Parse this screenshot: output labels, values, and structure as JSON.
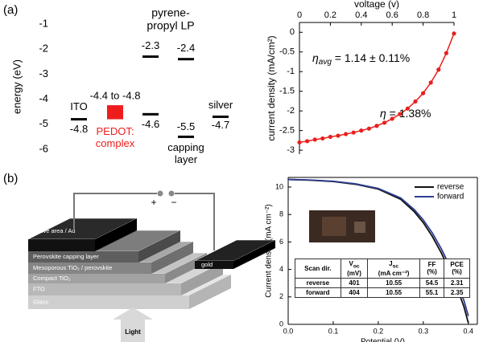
{
  "panel_labels": [
    "(a)",
    "(b)"
  ],
  "chart_data": [
    {
      "type": "energy_levels",
      "ylabel": "energy (eV)",
      "ylim": [
        -6,
        -1
      ],
      "yticks": [
        -1,
        -2,
        -3,
        -4,
        -5,
        -6
      ],
      "annotation_lines": [
        "pyrene-",
        "propyl LP"
      ],
      "levels": [
        {
          "name_lines": [
            "ITO"
          ],
          "values": [
            -4.8
          ]
        },
        {
          "name_lines": [
            "PEDOT:",
            "complex"
          ],
          "values": [
            -4.4,
            -4.8
          ],
          "label": "-4.4 to -4.8",
          "color": "#ee1c1c",
          "range": true
        },
        {
          "values": [
            -2.3,
            -4.6
          ]
        },
        {
          "name_lines": [
            "capping",
            "layer"
          ],
          "values": [
            -2.4,
            -5.5
          ]
        },
        {
          "name_lines": [
            "silver"
          ],
          "values": [
            -4.7
          ]
        }
      ]
    },
    {
      "type": "line",
      "xlabel": "voltage (v)",
      "ylabel": "current density (mA/cm²)",
      "x": [
        0,
        0.05,
        0.1,
        0.15,
        0.2,
        0.25,
        0.3,
        0.35,
        0.4,
        0.45,
        0.5,
        0.55,
        0.6,
        0.65,
        0.7,
        0.75,
        0.8,
        0.85,
        0.9,
        0.95,
        1
      ],
      "series": [
        {
          "color": "#e8201e",
          "values": [
            -2.8,
            -2.77,
            -2.73,
            -2.7,
            -2.66,
            -2.63,
            -2.59,
            -2.55,
            -2.5,
            -2.45,
            -2.38,
            -2.3,
            -2.2,
            -2.08,
            -1.94,
            -1.76,
            -1.55,
            -1.28,
            -0.95,
            -0.53,
            -0.03
          ]
        }
      ],
      "markers": true,
      "xaxis_position": "top",
      "xlim": [
        0,
        1
      ],
      "ylim": [
        -3.1,
        0.25
      ],
      "xticks": [
        0,
        0.2,
        0.4,
        0.6,
        0.8,
        1
      ],
      "yticks": [
        0,
        -0.5,
        -1,
        -1.5,
        -2,
        -2.5,
        -3
      ],
      "annotations": [
        {
          "symbol": "η",
          "subscript": "avg",
          "text": " = 1.14 ± 0.11%"
        },
        {
          "symbol": "η",
          "text": " = 1.38%"
        }
      ]
    },
    {
      "type": "line",
      "xlabel": "Potential (V)",
      "ylabel": "Current density (mA cm⁻²)",
      "x": [
        0,
        0.05,
        0.1,
        0.15,
        0.2,
        0.25,
        0.28,
        0.3,
        0.32,
        0.34,
        0.36,
        0.38,
        0.39,
        0.4
      ],
      "series": [
        {
          "name": "reverse",
          "color": "#111111",
          "values": [
            10.55,
            10.5,
            10.4,
            10.2,
            9.85,
            9.1,
            8.2,
            7.4,
            6.4,
            5.2,
            3.8,
            2.2,
            1.3,
            0.1
          ]
        },
        {
          "name": "forward",
          "color": "#2e3d8f",
          "values": [
            10.55,
            10.51,
            10.42,
            10.23,
            9.9,
            9.2,
            8.35,
            7.6,
            6.65,
            5.5,
            4.15,
            2.6,
            1.75,
            0.6
          ]
        }
      ],
      "legend": "upper right",
      "xlim": [
        0,
        0.42
      ],
      "ylim": [
        0,
        10.7
      ],
      "xticks": [
        {
          "value": 0,
          "label": "0.0"
        },
        0.1,
        0.2,
        0.3,
        0.4
      ],
      "yticks": [
        0,
        2,
        4,
        6,
        8,
        10
      ]
    }
  ],
  "inset_table": {
    "header": [
      {
        "text": "Scan dir."
      },
      {
        "text": "V",
        "sub": "oc",
        "unit": "(mV)"
      },
      {
        "text": "J",
        "sub": "sc",
        "unit": "(mA cm⁻²)"
      },
      {
        "text": "FF",
        "unit": "(%)"
      },
      {
        "text": "PCE",
        "unit": "(%)"
      }
    ],
    "rows": [
      [
        "reverse",
        "401",
        "10.55",
        "54.5",
        "2.31"
      ],
      [
        "forward",
        "404",
        "10.55",
        "55.1",
        "2.35"
      ]
    ]
  },
  "schematic": {
    "layers": [
      "Active area / Au",
      "Perovskite capping layer",
      "Mesoporous TiO₂ / perovskite",
      "Compact TiO₂",
      "FTO",
      "Glass"
    ],
    "contact": "gold",
    "terminals": [
      "+",
      "−"
    ],
    "light": "Light"
  }
}
